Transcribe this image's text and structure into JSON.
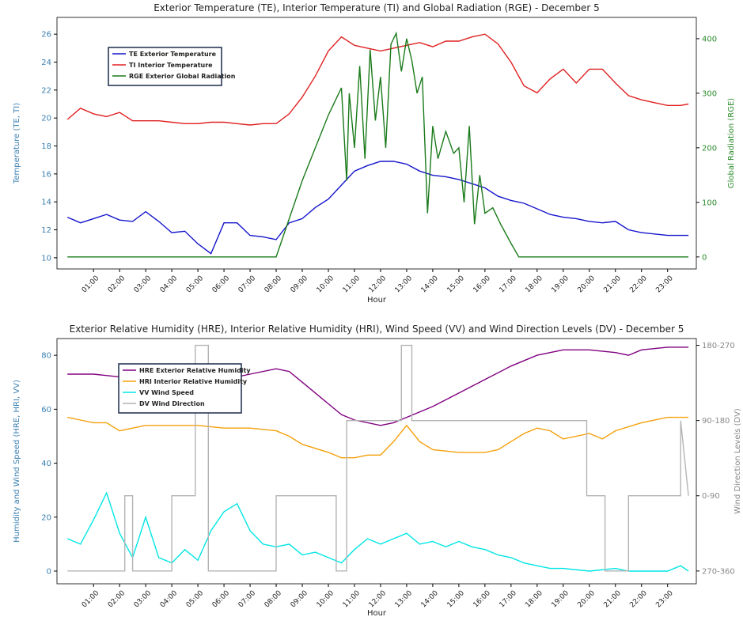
{
  "chart_data": [
    {
      "type": "line",
      "title": "Exterior Temperature (TE), Interior Temperature (TI) and Global Radiation (RGE) - December 5",
      "xlabel": "Hour",
      "ylabel": "Temperature (TE, TI)",
      "y2label": "Global Radiation (RGE)",
      "xlim": [
        -0.4,
        24.1
      ],
      "xticks": [
        {
          "value": 1,
          "label": "01:00"
        },
        {
          "value": 2,
          "label": "02:00"
        },
        {
          "value": 3,
          "label": "03:00"
        },
        {
          "value": 4,
          "label": "04:00"
        },
        {
          "value": 5,
          "label": "05:00"
        },
        {
          "value": 6,
          "label": "06:00"
        },
        {
          "value": 7,
          "label": "07:00"
        },
        {
          "value": 8,
          "label": "08:00"
        },
        {
          "value": 9,
          "label": "09:00"
        },
        {
          "value": 10,
          "label": "10:00"
        },
        {
          "value": 11,
          "label": "11:00"
        },
        {
          "value": 12,
          "label": "12:00"
        },
        {
          "value": 13,
          "label": "13:00"
        },
        {
          "value": 14,
          "label": "14:00"
        },
        {
          "value": 15,
          "label": "15:00"
        },
        {
          "value": 16,
          "label": "16:00"
        },
        {
          "value": 17,
          "label": "17:00"
        },
        {
          "value": 18,
          "label": "18:00"
        },
        {
          "value": 19,
          "label": "19:00"
        },
        {
          "value": 20,
          "label": "20:00"
        },
        {
          "value": 21,
          "label": "21:00"
        },
        {
          "value": 22,
          "label": "22:00"
        },
        {
          "value": 23,
          "label": "23:00"
        }
      ],
      "ylim": [
        9.2,
        27.2
      ],
      "yticks": [
        10,
        12,
        14,
        16,
        18,
        20,
        22,
        24,
        26
      ],
      "ycolor": "#3a7fb0",
      "y2lim": [
        -22,
        439
      ],
      "y2ticks": [
        0,
        100,
        200,
        300,
        400
      ],
      "y2color": "#2a8a2a",
      "legend": "upper left",
      "series": [
        {
          "name": "TE Exterior Temperature",
          "color": "#1515cc",
          "x": [
            0,
            0.5,
            1,
            1.5,
            2,
            2.5,
            3,
            3.5,
            4,
            4.5,
            5,
            5.5,
            6,
            6.5,
            7,
            7.5,
            8,
            8.5,
            9,
            9.5,
            10,
            10.5,
            11,
            11.5,
            12,
            12.5,
            13,
            13.5,
            14,
            14.5,
            15,
            15.5,
            16,
            16.5,
            17,
            17.5,
            18,
            18.5,
            19,
            19.5,
            20,
            20.5,
            21,
            21.5,
            22,
            22.5,
            23,
            23.5,
            23.8
          ],
          "values": [
            12.9,
            12.5,
            12.8,
            13.1,
            12.7,
            12.6,
            13.3,
            12.6,
            11.8,
            11.9,
            11.0,
            10.3,
            12.5,
            12.5,
            11.6,
            11.5,
            11.3,
            12.5,
            12.8,
            13.6,
            14.2,
            15.2,
            16.2,
            16.6,
            16.9,
            16.9,
            16.7,
            16.2,
            15.9,
            15.8,
            15.6,
            15.3,
            15.0,
            14.4,
            14.1,
            13.9,
            13.5,
            13.1,
            12.9,
            12.8,
            12.6,
            12.5,
            12.6,
            12.0,
            11.8,
            11.7,
            11.6,
            11.6,
            11.6
          ]
        },
        {
          "name": "TI Interior Temperature",
          "color": "#e02020",
          "x": [
            0,
            0.5,
            1,
            1.5,
            2,
            2.5,
            3,
            3.5,
            4,
            4.5,
            5,
            5.5,
            6,
            6.5,
            7,
            7.5,
            8,
            8.5,
            9,
            9.5,
            10,
            10.5,
            11,
            11.5,
            12,
            12.5,
            13,
            13.5,
            14,
            14.5,
            15,
            15.5,
            16,
            16.5,
            17,
            17.5,
            18,
            18.5,
            19,
            19.5,
            20,
            20.5,
            21,
            21.5,
            22,
            22.5,
            23,
            23.5,
            23.8
          ],
          "values": [
            19.9,
            20.7,
            20.3,
            20.1,
            20.4,
            19.8,
            19.8,
            19.8,
            19.7,
            19.6,
            19.6,
            19.7,
            19.7,
            19.6,
            19.5,
            19.6,
            19.6,
            20.3,
            21.5,
            23.0,
            24.8,
            25.8,
            25.2,
            25.0,
            24.8,
            25.0,
            25.2,
            25.4,
            25.1,
            25.5,
            25.5,
            25.8,
            26.0,
            25.3,
            24.0,
            22.3,
            21.8,
            22.8,
            23.5,
            22.5,
            23.5,
            23.5,
            22.5,
            21.6,
            21.3,
            21.1,
            20.9,
            20.9,
            21.0
          ]
        },
        {
          "name": "RGE Exterior Global Radiation",
          "color": "#1a7a1a",
          "axis": "y2",
          "x": [
            0,
            8,
            8.5,
            9,
            9.5,
            10,
            10.5,
            10.7,
            10.8,
            11,
            11.2,
            11.4,
            11.6,
            11.8,
            12,
            12.2,
            12.4,
            12.6,
            12.8,
            13,
            13.2,
            13.4,
            13.6,
            13.8,
            14,
            14.2,
            14.5,
            14.8,
            15,
            15.2,
            15.4,
            15.6,
            15.8,
            16,
            16.3,
            16.6,
            17,
            17.3,
            23.8
          ],
          "values": [
            0,
            0,
            70,
            140,
            200,
            260,
            310,
            140,
            300,
            200,
            350,
            180,
            380,
            250,
            330,
            200,
            390,
            410,
            340,
            400,
            360,
            300,
            330,
            80,
            240,
            180,
            230,
            190,
            200,
            100,
            240,
            60,
            150,
            80,
            90,
            60,
            25,
            0,
            0
          ]
        }
      ]
    },
    {
      "type": "line",
      "title": "Exterior Relative Humidity (HRE), Interior Relative Humidity (HRI), Wind Speed (VV) and Wind Direction Levels (DV) - December 5",
      "xlabel": "Hour",
      "ylabel": "Humidity and Wind Speed (HRE, HRI, VV)",
      "y2label": "Wind Direction Levels (DV)",
      "xlim": [
        -0.4,
        24.1
      ],
      "xticks": [
        {
          "value": 1,
          "label": "01:00"
        },
        {
          "value": 2,
          "label": "02:00"
        },
        {
          "value": 3,
          "label": "03:00"
        },
        {
          "value": 4,
          "label": "04:00"
        },
        {
          "value": 5,
          "label": "05:00"
        },
        {
          "value": 6,
          "label": "06:00"
        },
        {
          "value": 7,
          "label": "07:00"
        },
        {
          "value": 8,
          "label": "08:00"
        },
        {
          "value": 9,
          "label": "09:00"
        },
        {
          "value": 10,
          "label": "10:00"
        },
        {
          "value": 11,
          "label": "11:00"
        },
        {
          "value": 12,
          "label": "12:00"
        },
        {
          "value": 13,
          "label": "13:00"
        },
        {
          "value": 14,
          "label": "14:00"
        },
        {
          "value": 15,
          "label": "15:00"
        },
        {
          "value": 16,
          "label": "16:00"
        },
        {
          "value": 17,
          "label": "17:00"
        },
        {
          "value": 18,
          "label": "18:00"
        },
        {
          "value": 19,
          "label": "19:00"
        },
        {
          "value": 20,
          "label": "20:00"
        },
        {
          "value": 21,
          "label": "21:00"
        },
        {
          "value": 22,
          "label": "22:00"
        },
        {
          "value": 23,
          "label": "23:00"
        }
      ],
      "ylim": [
        -4.7,
        86.2
      ],
      "yticks": [
        0,
        20,
        40,
        60,
        80
      ],
      "ycolor": "#3a7fb0",
      "y2lim": [
        -0.17,
        3.09
      ],
      "y2ticks": [
        {
          "value": 0,
          "label": "270-360"
        },
        {
          "value": 1,
          "label": "0-90"
        },
        {
          "value": 2,
          "label": "90-180"
        },
        {
          "value": 3,
          "label": "180-270"
        }
      ],
      "y2color": "#888888",
      "legend": "upper left",
      "series": [
        {
          "name": "HRE Exterior Relative Humidity",
          "color": "#800080",
          "x": [
            0,
            1,
            2,
            3,
            4,
            5,
            6,
            7,
            8,
            8.5,
            9,
            10,
            10.5,
            11,
            12,
            12.5,
            13,
            14,
            15,
            16,
            17,
            18,
            19,
            20,
            21,
            21.5,
            22,
            23,
            23.8
          ],
          "values": [
            73,
            73,
            72,
            72,
            72,
            71,
            71,
            73,
            75,
            74,
            70,
            62,
            58,
            56,
            54,
            55,
            57,
            61,
            66,
            71,
            76,
            80,
            82,
            82,
            81,
            80,
            82,
            83,
            83
          ]
        },
        {
          "name": "HRI Interior Relative Humidity",
          "color": "#f5a00a",
          "x": [
            0,
            0.5,
            1,
            1.5,
            2,
            2.5,
            3,
            4,
            5,
            6,
            7,
            8,
            8.5,
            9,
            10,
            10.5,
            11,
            11.5,
            12,
            12.5,
            13,
            13.5,
            14,
            15,
            16,
            16.5,
            17,
            17.5,
            18,
            18.5,
            19,
            20,
            20.5,
            21,
            22,
            23,
            23.8
          ],
          "values": [
            57,
            56,
            55,
            55,
            52,
            53,
            54,
            54,
            54,
            53,
            53,
            52,
            50,
            47,
            44,
            42,
            42,
            43,
            43,
            48,
            54,
            48,
            45,
            44,
            44,
            45,
            48,
            51,
            53,
            52,
            49,
            51,
            49,
            52,
            55,
            57,
            57
          ]
        },
        {
          "name": "VV Wind Speed",
          "color": "#00e5e5",
          "x": [
            0,
            0.5,
            1,
            1.5,
            2,
            2.5,
            3,
            3.5,
            4,
            4.5,
            5,
            5.5,
            6,
            6.5,
            7,
            7.5,
            8,
            8.5,
            9,
            9.5,
            10,
            10.5,
            11,
            11.5,
            12,
            12.5,
            13,
            13.5,
            14,
            14.5,
            15,
            15.5,
            16,
            16.5,
            17,
            17.5,
            18,
            18.5,
            19,
            20,
            21,
            21.5,
            22,
            23,
            23.5,
            23.8
          ],
          "values": [
            12,
            10,
            19,
            29,
            14,
            5,
            20,
            5,
            3,
            8,
            4,
            15,
            22,
            25,
            15,
            10,
            9,
            10,
            6,
            7,
            5,
            3,
            8,
            12,
            10,
            12,
            14,
            10,
            11,
            9,
            11,
            9,
            8,
            6,
            5,
            3,
            2,
            1,
            1,
            0,
            1,
            0,
            0,
            0,
            2,
            0
          ]
        },
        {
          "name": "DV Wind Direction",
          "color": "#b4b4b4",
          "axis": "y2",
          "x": [
            0,
            2.2,
            2.2,
            2.5,
            2.5,
            4.0,
            4.0,
            4.9,
            4.9,
            5.4,
            5.4,
            8.0,
            8.0,
            10.3,
            10.3,
            10.7,
            10.7,
            12.8,
            12.8,
            13.2,
            13.2,
            19.9,
            19.9,
            20.6,
            20.6,
            21.5,
            21.5,
            23.5,
            23.5,
            23.8
          ],
          "values": [
            0,
            0,
            1,
            1,
            0,
            0,
            1,
            1,
            3,
            3,
            0,
            0,
            1,
            1,
            0,
            0,
            2,
            2,
            3,
            3,
            2,
            2,
            1,
            1,
            0,
            0,
            1,
            1,
            2,
            1
          ]
        }
      ]
    }
  ]
}
